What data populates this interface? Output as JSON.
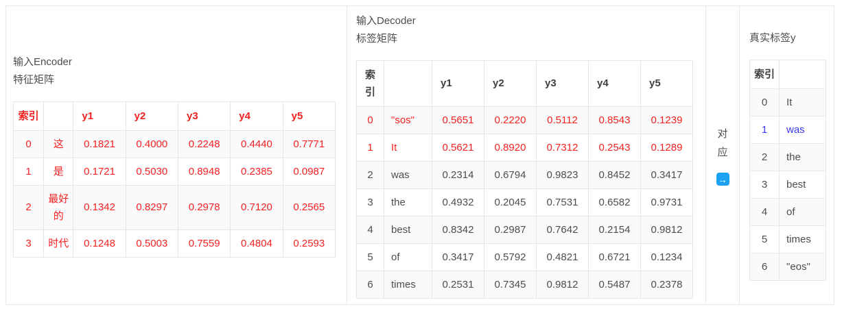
{
  "colors": {
    "red_text": "#f42121",
    "blue_text": "#3838f0",
    "arrow_icon_blue": "#1da1f2",
    "dark_text": "#4d4d4d",
    "row_stripe": "#fafafa",
    "border": "#e6e6e6"
  },
  "panels": {
    "encoder": {
      "title_lines": [
        "输入Encoder",
        "特征矩阵"
      ],
      "table": {
        "headers": [
          "索引",
          "",
          "y1",
          "y2",
          "y3",
          "y4",
          "y5"
        ],
        "header_color": "red",
        "rows": [
          {
            "cells": [
              "0",
              "这",
              "0.1821",
              "0.4000",
              "0.2248",
              "0.4440",
              "0.7771"
            ],
            "color": "red"
          },
          {
            "cells": [
              "1",
              "是",
              "0.1721",
              "0.5030",
              "0.8948",
              "0.2385",
              "0.0987"
            ],
            "color": "red"
          },
          {
            "cells": [
              "2",
              "最好的",
              "0.1342",
              "0.8297",
              "0.2978",
              "0.7120",
              "0.2565"
            ],
            "color": "red"
          },
          {
            "cells": [
              "3",
              "时代",
              "0.1248",
              "0.5003",
              "0.7559",
              "0.4804",
              "0.2593"
            ],
            "color": "red"
          }
        ]
      }
    },
    "decoder": {
      "title_lines": [
        "输入Decoder",
        "标签矩阵"
      ],
      "table": {
        "headers": [
          "索引",
          "",
          "y1",
          "y2",
          "y3",
          "y4",
          "y5"
        ],
        "header_color": "dark",
        "rows": [
          {
            "cells": [
              "0",
              "\"sos\"",
              "0.5651",
              "0.2220",
              "0.5112",
              "0.8543",
              "0.1239"
            ],
            "color": "red"
          },
          {
            "cells": [
              "1",
              "It",
              "0.5621",
              "0.8920",
              "0.7312",
              "0.2543",
              "0.1289"
            ],
            "color": "red"
          },
          {
            "cells": [
              "2",
              "was",
              "0.2314",
              "0.6794",
              "0.9823",
              "0.8452",
              "0.3417"
            ],
            "color": "default"
          },
          {
            "cells": [
              "3",
              "the",
              "0.4932",
              "0.2045",
              "0.7531",
              "0.6582",
              "0.9731"
            ],
            "color": "default"
          },
          {
            "cells": [
              "4",
              "best",
              "0.8342",
              "0.2987",
              "0.7642",
              "0.2154",
              "0.9812"
            ],
            "color": "default"
          },
          {
            "cells": [
              "5",
              "of",
              "0.3417",
              "0.5792",
              "0.4821",
              "0.6721",
              "0.1234"
            ],
            "color": "default"
          },
          {
            "cells": [
              "6",
              "times",
              "0.2531",
              "0.7345",
              "0.9812",
              "0.5487",
              "0.2378"
            ],
            "color": "default"
          }
        ]
      }
    },
    "mapping": {
      "label": "对应",
      "arrow_icon": "right-arrow-icon",
      "arrow_glyph": "→"
    },
    "labels": {
      "title_lines": [
        "真实标签y"
      ],
      "table": {
        "headers": [
          "索引",
          ""
        ],
        "header_color": "dark",
        "rows": [
          {
            "cells": [
              "0",
              "It"
            ],
            "color": "default"
          },
          {
            "cells": [
              "1",
              "was"
            ],
            "color": "blue"
          },
          {
            "cells": [
              "2",
              "the"
            ],
            "color": "default"
          },
          {
            "cells": [
              "3",
              "best"
            ],
            "color": "default"
          },
          {
            "cells": [
              "4",
              "of"
            ],
            "color": "default"
          },
          {
            "cells": [
              "5",
              "times"
            ],
            "color": "default"
          },
          {
            "cells": [
              "6",
              "\"eos\""
            ],
            "color": "default"
          }
        ]
      }
    }
  }
}
